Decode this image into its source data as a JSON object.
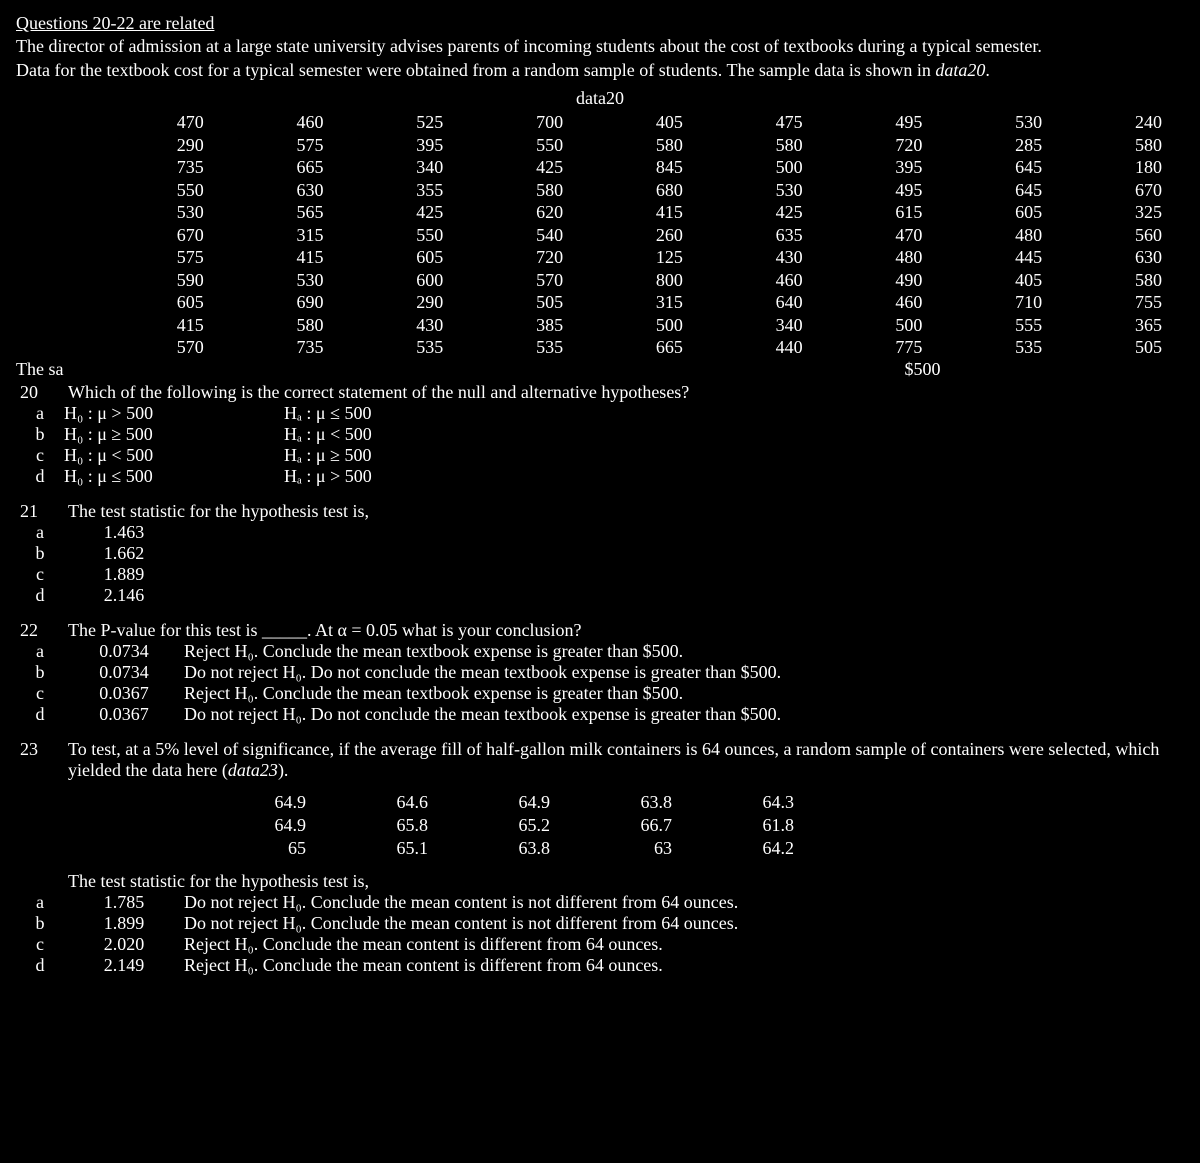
{
  "header": {
    "title": "Questions 20-22 are related",
    "p1": "The director of admission at a large state university advises parents of incoming students about the cost of textbooks during a typical semester.",
    "p2a": "Data for the textbook cost for a typical semester were obtained from a random sample of students.  The sample data is shown in ",
    "p2b": "data20",
    "p2c": "."
  },
  "data20": {
    "label": "data20",
    "rows": [
      [
        "470",
        "460",
        "525",
        "700",
        "405",
        "475",
        "495",
        "530",
        "240"
      ],
      [
        "290",
        "575",
        "395",
        "550",
        "580",
        "580",
        "720",
        "285",
        "580"
      ],
      [
        "735",
        "665",
        "340",
        "425",
        "845",
        "500",
        "395",
        "645",
        "180"
      ],
      [
        "550",
        "630",
        "355",
        "580",
        "680",
        "530",
        "495",
        "645",
        "670"
      ],
      [
        "530",
        "565",
        "425",
        "620",
        "415",
        "425",
        "615",
        "605",
        "325"
      ],
      [
        "670",
        "315",
        "550",
        "540",
        "260",
        "635",
        "470",
        "480",
        "560"
      ],
      [
        "575",
        "415",
        "605",
        "720",
        "125",
        "430",
        "480",
        "445",
        "630"
      ],
      [
        "590",
        "530",
        "600",
        "570",
        "800",
        "460",
        "490",
        "405",
        "580"
      ],
      [
        "605",
        "690",
        "290",
        "505",
        "315",
        "640",
        "460",
        "710",
        "755"
      ],
      [
        "415",
        "580",
        "430",
        "385",
        "500",
        "340",
        "500",
        "555",
        "365"
      ],
      [
        "570",
        "735",
        "535",
        "535",
        "665",
        "440",
        "775",
        "535",
        "505"
      ]
    ],
    "mean_label": "The sa",
    "mean_value": "$500"
  },
  "q20": {
    "num": "20",
    "text": "Which of the following is the correct statement of the null and alternative hypotheses?",
    "opts": [
      {
        "l": "a",
        "h0": "H₀ : μ > 500",
        "ha": "Hₐ : μ ≤ 500"
      },
      {
        "l": "b",
        "h0": "H₀ : μ ≥ 500",
        "ha": "Hₐ : μ < 500"
      },
      {
        "l": "c",
        "h0": "H₀ : μ < 500",
        "ha": "Hₐ : μ ≥ 500"
      },
      {
        "l": "d",
        "h0": "H₀ : μ ≤ 500",
        "ha": "Hₐ : μ > 500"
      }
    ]
  },
  "q21": {
    "num": "21",
    "text": "The test statistic for the hypothesis test is,",
    "opts": [
      {
        "l": "a",
        "v": "1.463"
      },
      {
        "l": "b",
        "v": "1.662"
      },
      {
        "l": "c",
        "v": "1.889"
      },
      {
        "l": "d",
        "v": "2.146"
      }
    ]
  },
  "q22": {
    "num": "22",
    "text": "The P-value for this test is _____.  At α = 0.05 what is your conclusion?",
    "opts": [
      {
        "l": "a",
        "v": "0.0734",
        "t": "Reject H₀.  Conclude the mean textbook expense is greater than $500."
      },
      {
        "l": "b",
        "v": "0.0734",
        "t": "Do not reject H₀.  Do not conclude the mean textbook expense is greater than $500."
      },
      {
        "l": "c",
        "v": "0.0367",
        "t": "Reject H₀.  Conclude the mean textbook expense is greater than $500."
      },
      {
        "l": "d",
        "v": "0.0367",
        "t": "Do not reject H₀.  Do not conclude the mean textbook expense is greater than $500."
      }
    ]
  },
  "q23": {
    "num": "23",
    "text_a": "To test, at a 5% level of significance, if the average fill of half-gallon milk containers is 64 ounces, a random sample of containers were selected, which yielded the data here (",
    "text_b": "data23",
    "text_c": ").",
    "rows": [
      [
        "64.9",
        "64.6",
        "64.9",
        "63.8",
        "64.3"
      ],
      [
        "64.9",
        "65.8",
        "65.2",
        "66.7",
        "61.8"
      ],
      [
        "65",
        "65.1",
        "63.8",
        "63",
        "64.2"
      ]
    ],
    "stat_text": "The test statistic for the hypothesis test is,",
    "opts": [
      {
        "l": "a",
        "v": "1.785",
        "t": "Do not reject H₀.  Conclude the mean content is not different from 64 ounces."
      },
      {
        "l": "b",
        "v": "1.899",
        "t": "Do not reject H₀.  Conclude the mean content is not different from 64 ounces."
      },
      {
        "l": "c",
        "v": "2.020",
        "t": "Reject H₀.  Conclude the mean content is different from 64 ounces."
      },
      {
        "l": "d",
        "v": "2.149",
        "t": "Reject H₀.  Conclude the mean content is different from 64 ounces."
      }
    ]
  }
}
